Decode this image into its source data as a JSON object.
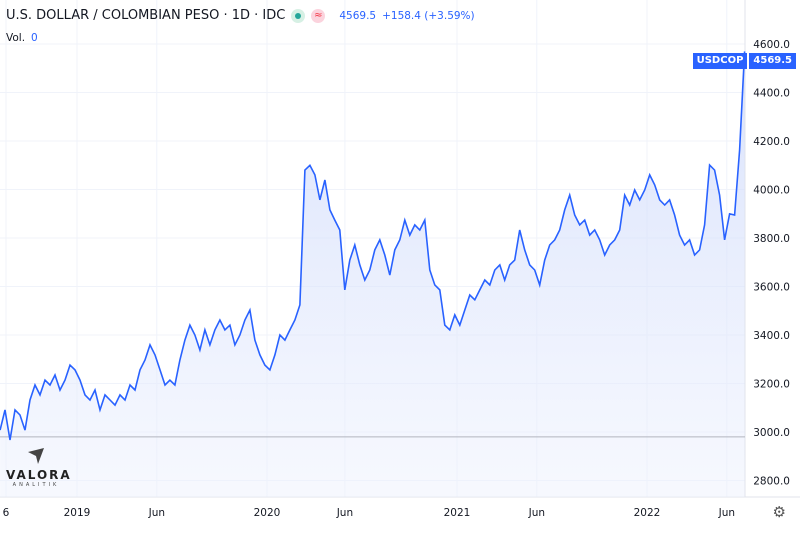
{
  "header": {
    "title": "U.S. DOLLAR / COLOMBIAN PESO · 1D · IDC",
    "last": "4569.5",
    "change": "+158.4 (+3.59%)",
    "vol_label": "Vol.",
    "vol_value": "0",
    "market_status_icon": "green-dot-icon",
    "eq_icon": "≈"
  },
  "symbol_tag": "USDCOP",
  "price_tag": "4569.5",
  "logo": {
    "name": "VALORA",
    "sub": "ANALITIK"
  },
  "colors": {
    "line": "#2962ff",
    "fill": "#dfe7fb",
    "tag": "#2962ff"
  },
  "chart_data": {
    "type": "area",
    "title": "U.S. DOLLAR / COLOMBIAN PESO",
    "x_start_year": 2018.595,
    "x_step_years": 0.0263,
    "ylim": [
      2760,
      4650
    ],
    "y_ticks": [
      "2800.0",
      "3000.0",
      "3200.0",
      "3400.0",
      "3600.0",
      "3800.0",
      "4000.0",
      "4200.0",
      "4400.0",
      "4600.0"
    ],
    "x_ticks": [
      {
        "label": "6",
        "year": 2018.6
      },
      {
        "label": "2019",
        "year": 2019.0
      },
      {
        "label": "Jun",
        "year": 2019.42
      },
      {
        "label": "2020",
        "year": 2020.0
      },
      {
        "label": "Jun",
        "year": 2020.41
      },
      {
        "label": "2021",
        "year": 2021.0
      },
      {
        "label": "Jun",
        "year": 2021.42
      },
      {
        "label": "2022",
        "year": 2022.0
      },
      {
        "label": "Jun",
        "year": 2022.42
      }
    ],
    "reference_line": 2980,
    "values": [
      3008,
      3091,
      2967,
      3091,
      3070,
      3008,
      3132,
      3194,
      3153,
      3214,
      3194,
      3235,
      3173,
      3214,
      3276,
      3256,
      3214,
      3153,
      3132,
      3173,
      3091,
      3153,
      3132,
      3111,
      3153,
      3132,
      3194,
      3173,
      3256,
      3297,
      3359,
      3318,
      3256,
      3194,
      3214,
      3194,
      3297,
      3379,
      3441,
      3400,
      3338,
      3421,
      3359,
      3421,
      3462,
      3421,
      3441,
      3359,
      3400,
      3462,
      3503,
      3379,
      3318,
      3276,
      3256,
      3318,
      3400,
      3379,
      3421,
      3462,
      3524,
      4080,
      4100,
      4060,
      3957,
      4039,
      3916,
      3874,
      3833,
      3586,
      3709,
      3771,
      3689,
      3627,
      3668,
      3751,
      3792,
      3730,
      3647,
      3751,
      3792,
      3874,
      3812,
      3854,
      3833,
      3874,
      3668,
      3606,
      3586,
      3441,
      3421,
      3483,
      3441,
      3503,
      3565,
      3545,
      3586,
      3627,
      3606,
      3668,
      3689,
      3627,
      3689,
      3709,
      3833,
      3751,
      3689,
      3668,
      3606,
      3709,
      3771,
      3792,
      3833,
      3916,
      3977,
      3895,
      3854,
      3874,
      3812,
      3833,
      3792,
      3730,
      3771,
      3792,
      3833,
      3977,
      3936,
      3998,
      3957,
      3998,
      4060,
      4019,
      3957,
      3936,
      3957,
      3895,
      3812,
      3771,
      3792,
      3730,
      3751,
      3854,
      4101,
      4080,
      3977,
      3792,
      3900,
      3895,
      4163,
      4569.5
    ]
  }
}
